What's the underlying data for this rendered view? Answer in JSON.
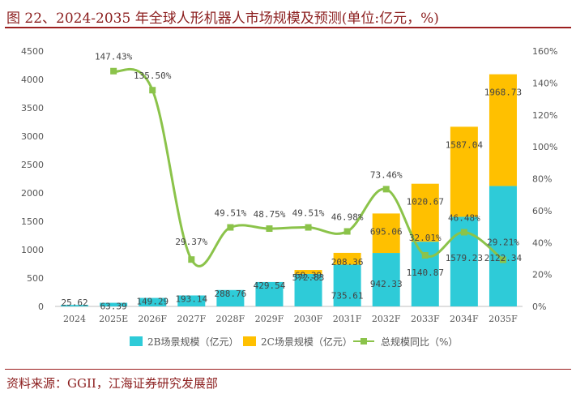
{
  "header": {
    "title": "图 22、2024-2035 年全球人形机器人市场规模及预测(单位:亿元，%)"
  },
  "footer": {
    "source": "资料来源：GGII，江海证券研究发展部"
  },
  "chart_data": {
    "type": "bar",
    "stacked": true,
    "categories": [
      "2024",
      "2025E",
      "2026F",
      "2027F",
      "2028F",
      "2029F",
      "2030F",
      "2031F",
      "2032F",
      "2033F",
      "2034F",
      "2035F"
    ],
    "series": [
      {
        "name": "2B场景规模（亿元）",
        "kind": "bar",
        "color": "#2ECBD8",
        "values": [
          25.62,
          63.39,
          149.29,
          193.14,
          288.76,
          429.54,
          572.83,
          735.61,
          942.33,
          1140.87,
          1579.23,
          2122.34
        ],
        "labels": [
          "25.62",
          "63.39",
          "149.29",
          "193.14",
          "288.76",
          "429.54",
          "572.83",
          "735.61",
          "942.33",
          "1140.87",
          "1579.23",
          "2122.34"
        ]
      },
      {
        "name": "2C场景规模（亿元）",
        "kind": "bar",
        "color": "#FFC000",
        "values": [
          0,
          0,
          0,
          0,
          0,
          0,
          69.39,
          208.36,
          695.06,
          1020.67,
          1587.04,
          1968.73
        ],
        "labels": [
          "",
          "",
          "",
          "",
          "",
          "",
          "69.39",
          "208.36",
          "695.06",
          "1020.67",
          "1587.04",
          "1968.73"
        ]
      },
      {
        "name": "总规模同比（%）",
        "kind": "line",
        "axis": "right",
        "color": "#8BC34A",
        "values": [
          null,
          147.43,
          135.5,
          29.37,
          49.51,
          48.75,
          49.51,
          46.98,
          73.46,
          32.01,
          46.48,
          29.21
        ],
        "labels": [
          "",
          "147.43%",
          "135.50%",
          "29.37%",
          "49.51%",
          "48.75%",
          "49.51%",
          "46.98%",
          "73.46%",
          "32.01%",
          "46.48%",
          "29.21%"
        ]
      }
    ],
    "y_left": {
      "min": 0,
      "max": 4500,
      "step": 500,
      "ticks": [
        "0",
        "500",
        "1000",
        "1500",
        "2000",
        "2500",
        "3000",
        "3500",
        "4000",
        "4500"
      ]
    },
    "y_right": {
      "min": 0,
      "max": 160,
      "step": 20,
      "ticks": [
        "0%",
        "20%",
        "40%",
        "60%",
        "80%",
        "100%",
        "120%",
        "140%",
        "160%"
      ]
    },
    "grid": false,
    "legend_position": "bottom"
  }
}
